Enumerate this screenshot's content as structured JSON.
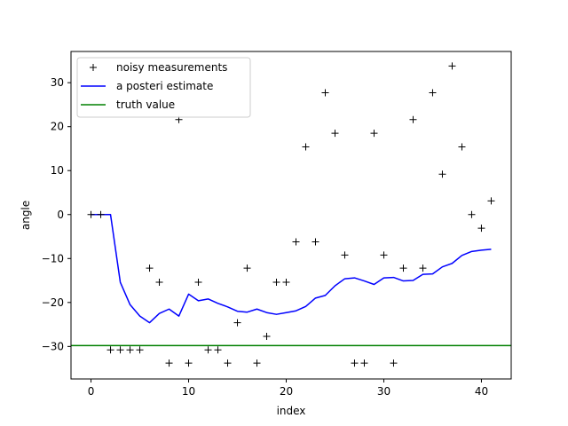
{
  "chart_data": {
    "type": "line",
    "title": "",
    "xlabel": "index",
    "ylabel": "angle",
    "xlim": [
      -2.05,
      43.05
    ],
    "ylim": [
      -37.4,
      37.1
    ],
    "xticks": [
      0,
      10,
      20,
      30,
      40
    ],
    "yticks": [
      -30,
      -20,
      -10,
      0,
      10,
      20,
      30
    ],
    "grid": false,
    "legend_position": "top-left",
    "series": [
      {
        "name": "noisy measurements",
        "style": "marker",
        "marker": "+",
        "color": "#000000",
        "x": [
          0,
          1,
          2,
          3,
          4,
          5,
          6,
          7,
          8,
          9,
          10,
          11,
          12,
          13,
          14,
          15,
          16,
          17,
          18,
          19,
          20,
          21,
          22,
          23,
          24,
          25,
          26,
          27,
          28,
          29,
          30,
          31,
          32,
          33,
          34,
          35,
          36,
          37,
          38,
          39,
          40,
          41
        ],
        "y": [
          0,
          0,
          -30.8,
          -30.8,
          -30.8,
          -30.8,
          -12.2,
          -15.4,
          -33.8,
          21.6,
          -33.8,
          -15.4,
          -30.8,
          -30.8,
          -33.8,
          -24.6,
          -12.2,
          -33.8,
          -27.7,
          -15.4,
          -15.4,
          -6.2,
          15.4,
          -6.2,
          27.7,
          18.5,
          -9.2,
          -33.8,
          -33.8,
          18.5,
          -9.2,
          -33.8,
          -12.2,
          21.6,
          -12.2,
          27.7,
          9.2,
          33.8,
          15.4,
          0,
          -3.1,
          3.1
        ]
      },
      {
        "name": "a posteri estimate",
        "style": "line",
        "color": "#0000ff",
        "x": [
          0,
          1,
          2,
          3,
          4,
          5,
          6,
          7,
          8,
          9,
          10,
          11,
          12,
          13,
          14,
          15,
          16,
          17,
          18,
          19,
          20,
          21,
          22,
          23,
          24,
          25,
          26,
          27,
          28,
          29,
          30,
          31,
          32,
          33,
          34,
          35,
          36,
          37,
          38,
          39,
          40,
          41
        ],
        "y": [
          0,
          0,
          0,
          -15.4,
          -20.5,
          -23.1,
          -24.6,
          -22.5,
          -21.5,
          -23.1,
          -18.1,
          -19.6,
          -19.2,
          -20.2,
          -21.0,
          -22.0,
          -22.2,
          -21.5,
          -22.3,
          -22.7,
          -22.3,
          -21.9,
          -20.9,
          -19.0,
          -18.4,
          -16.2,
          -14.6,
          -14.4,
          -15.1,
          -15.9,
          -14.4,
          -14.3,
          -15.1,
          -15.0,
          -13.6,
          -13.5,
          -11.9,
          -11.1,
          -9.3,
          -8.4,
          -8.1,
          -7.9
        ]
      },
      {
        "name": "truth value",
        "style": "hline",
        "color": "#008000",
        "y": -29.8
      }
    ]
  }
}
